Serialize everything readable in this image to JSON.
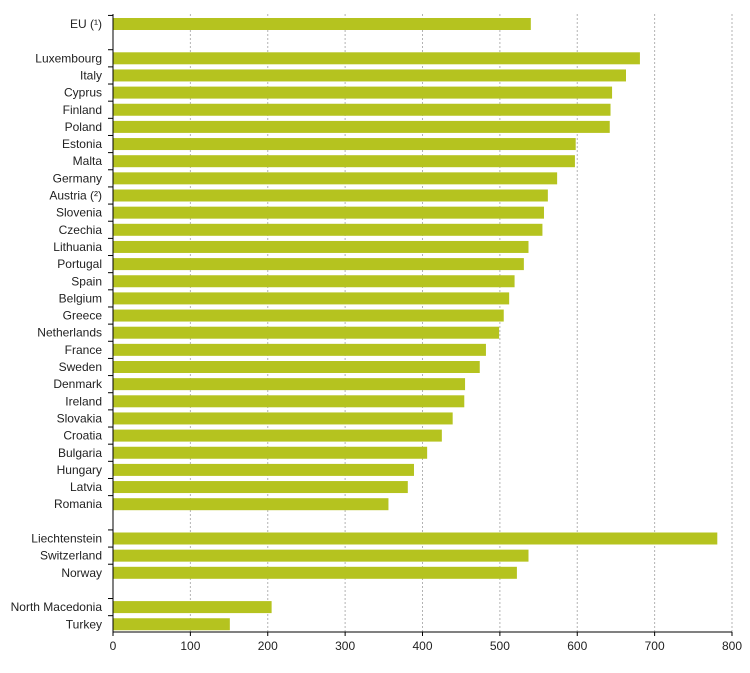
{
  "chart_data": {
    "type": "bar",
    "orientation": "horizontal",
    "categories": [
      "EU (¹)",
      "Luxembourg",
      "Italy",
      "Cyprus",
      "Finland",
      "Poland",
      "Estonia",
      "Malta",
      "Germany",
      "Austria (²)",
      "Slovenia",
      "Czechia",
      "Lithuania",
      "Portugal",
      "Spain",
      "Belgium",
      "Greece",
      "Netherlands",
      "France",
      "Sweden",
      "Denmark",
      "Ireland",
      "Slovakia",
      "Croatia",
      "Bulgaria",
      "Hungary",
      "Latvia",
      "Romania",
      "Liechtenstein",
      "Switzerland",
      "Norway",
      "North Macedonia",
      "Turkey"
    ],
    "values": [
      540,
      681,
      663,
      645,
      643,
      642,
      598,
      597,
      574,
      562,
      557,
      555,
      537,
      531,
      519,
      512,
      505,
      499,
      482,
      474,
      455,
      454,
      439,
      425,
      406,
      389,
      381,
      356,
      781,
      537,
      522,
      205,
      151
    ],
    "groups": [
      1,
      27,
      3,
      2
    ],
    "xlim": [
      0,
      800
    ],
    "xticks": [
      "0",
      "100",
      "200",
      "300",
      "400",
      "500",
      "600",
      "700",
      "800"
    ],
    "grid": true,
    "bar_color": "#b5c31f",
    "grid_color": "#b3b3b3",
    "title": "",
    "xlabel": "",
    "ylabel": ""
  }
}
